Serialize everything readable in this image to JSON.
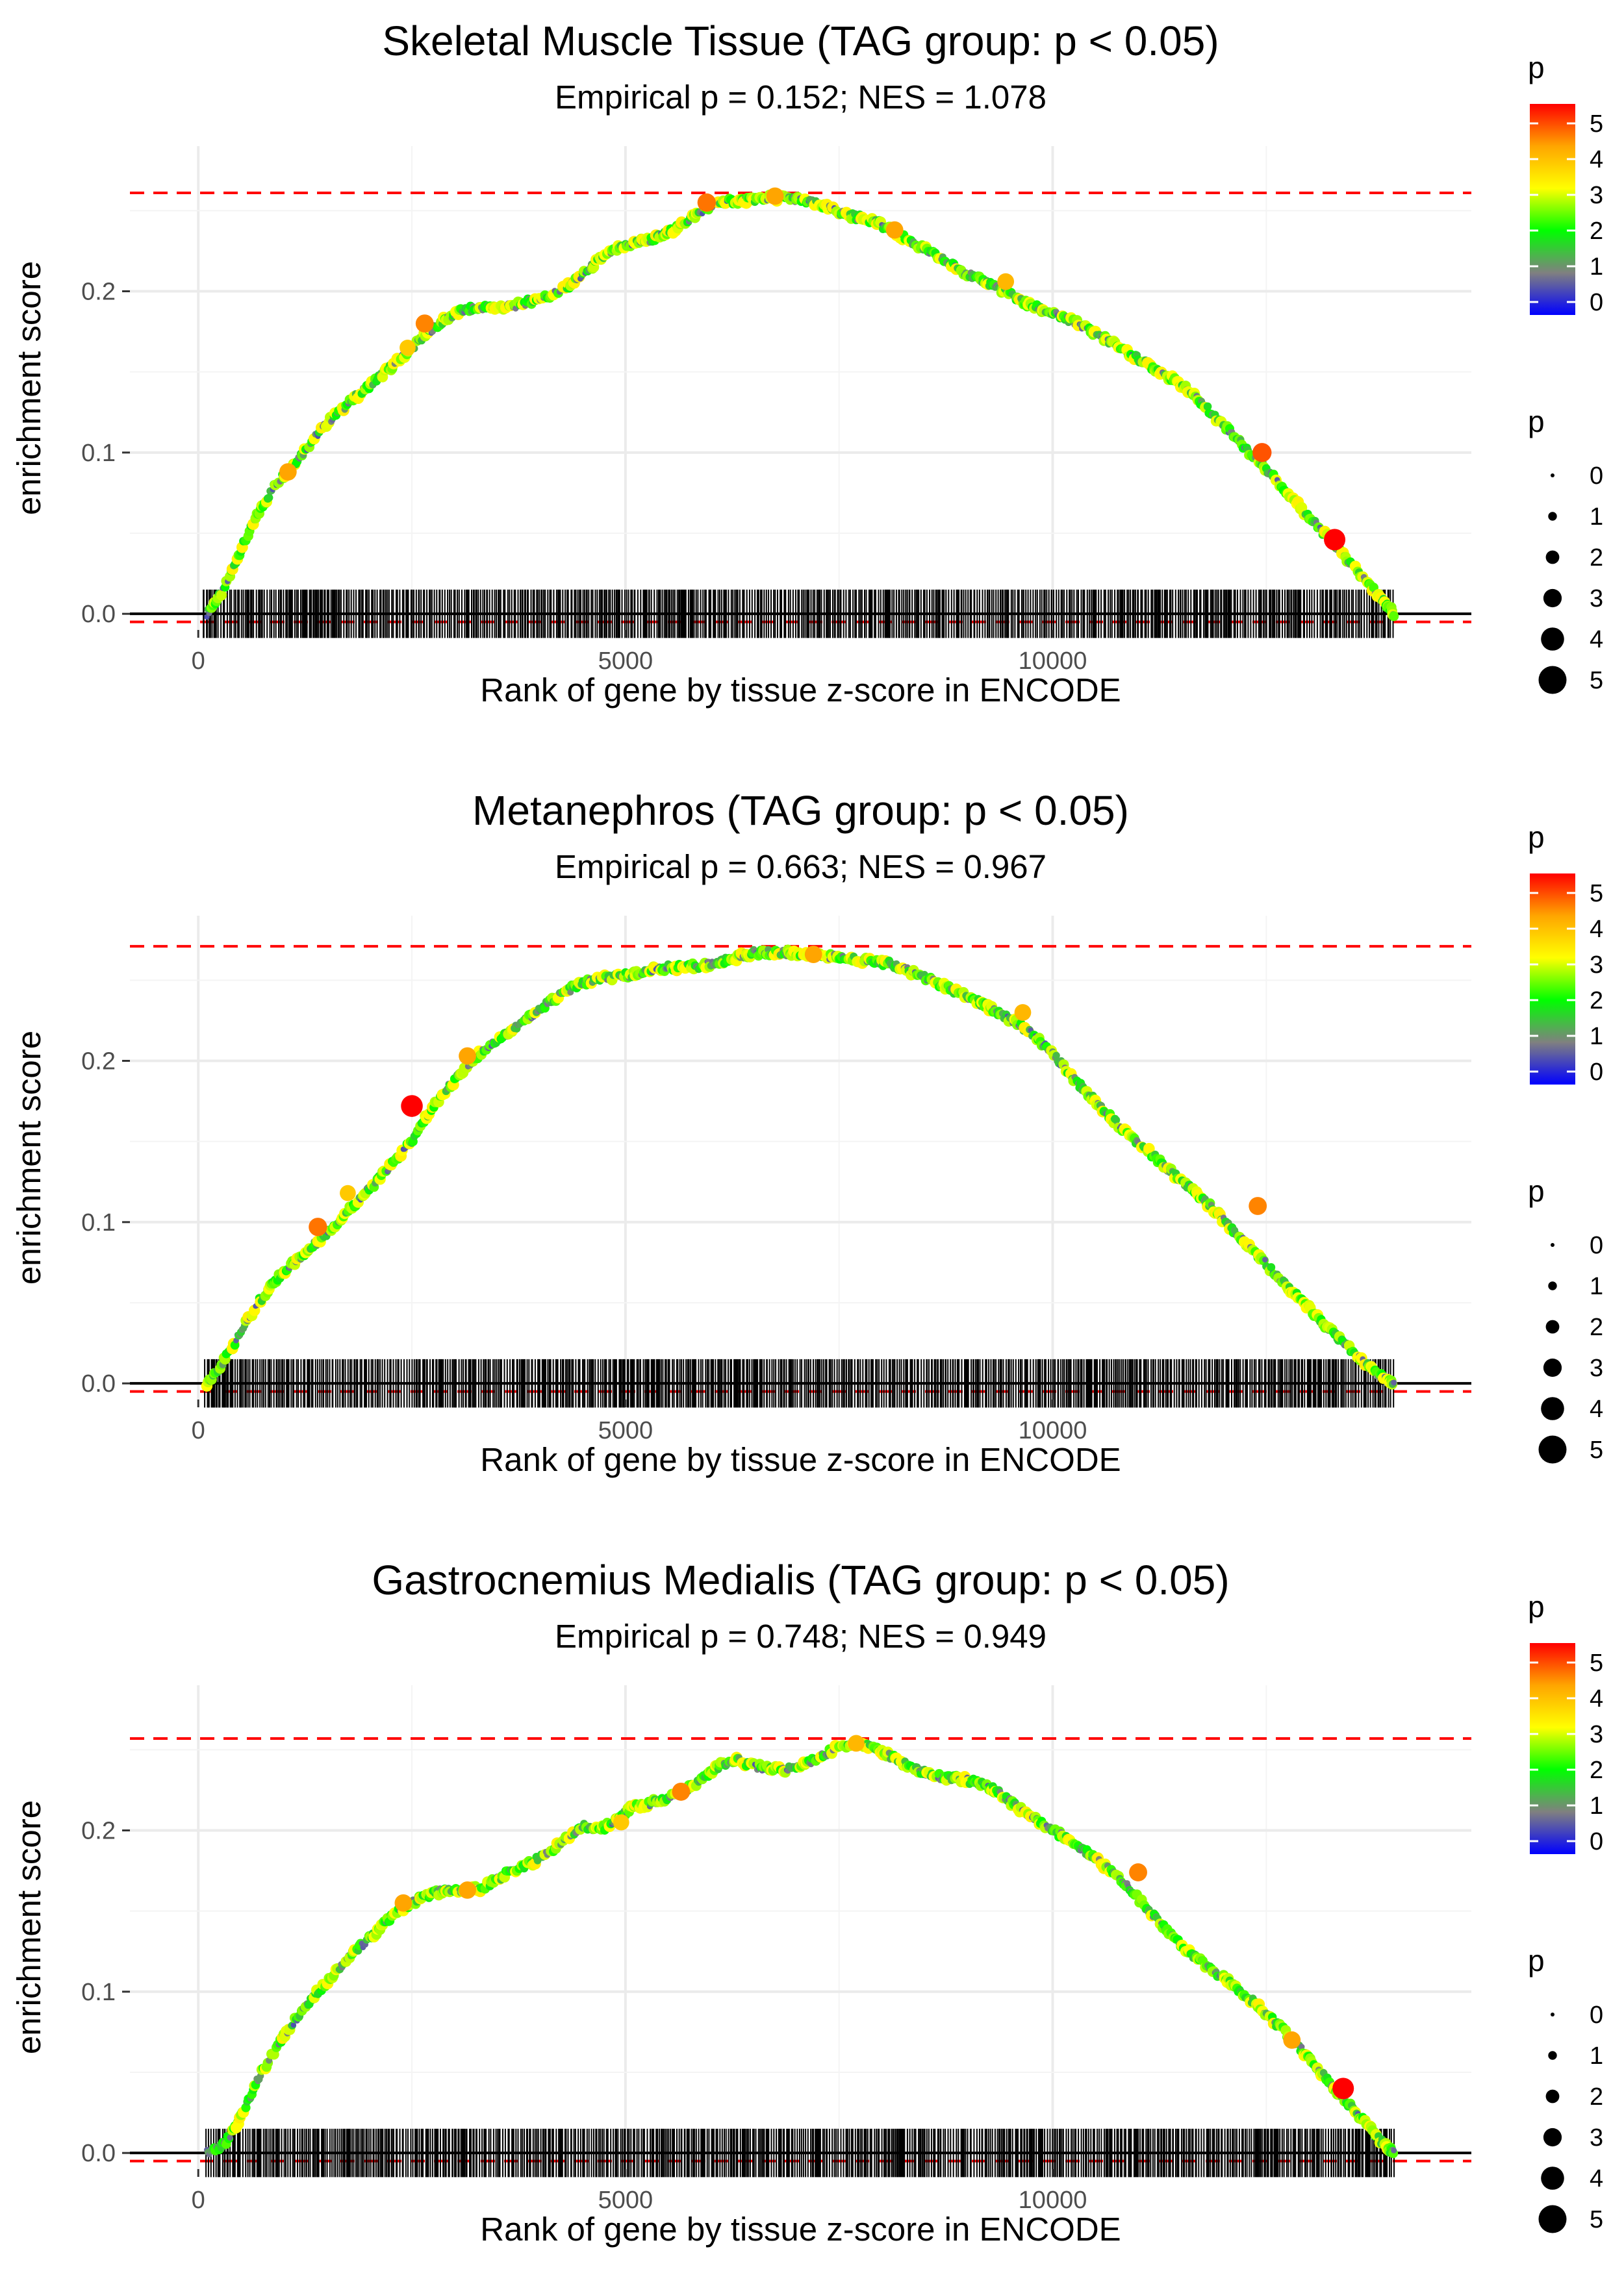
{
  "chart_data": [
    {
      "type": "line",
      "title": "Skeletal Muscle Tissue (TAG group: p < 0.05)",
      "subtitle": "Empirical p = 0.152; NES = 1.078",
      "xlabel": "Rank of gene by tissue z-score in ENCODE",
      "ylabel": "enrichment score",
      "xlim": [
        -800,
        14900
      ],
      "ylim": [
        -0.01,
        0.29
      ],
      "x_ticks": [
        0,
        5000,
        10000
      ],
      "x_tick_labels": [
        "0",
        "5000",
        "10000"
      ],
      "y_ticks": [
        0,
        0.1,
        0.2
      ],
      "y_tick_labels": [
        "0.0",
        "0.1",
        "0.2"
      ],
      "max_es": 0.261,
      "min_es": -0.005,
      "curve": {
        "x": [
          100,
          300,
          500,
          700,
          900,
          1100,
          1300,
          1500,
          1700,
          1900,
          2100,
          2300,
          2500,
          2700,
          2900,
          3100,
          3300,
          3500,
          3700,
          3900,
          4100,
          4300,
          4500,
          4700,
          4900,
          5100,
          5300,
          5500,
          5700,
          5900,
          6100,
          6300,
          6500,
          6700,
          6900,
          7100,
          7300,
          7500,
          7700,
          7900,
          8100,
          8300,
          8500,
          8700,
          8900,
          9100,
          9300,
          9500,
          9700,
          9900,
          10100,
          10300,
          10500,
          10700,
          10900,
          11100,
          11300,
          11500,
          11700,
          11900,
          12100,
          12300,
          12500,
          12700,
          12900,
          13100,
          13300,
          13500,
          13700,
          13900,
          14000
        ],
        "y": [
          0.0,
          0.015,
          0.04,
          0.062,
          0.08,
          0.092,
          0.105,
          0.118,
          0.128,
          0.137,
          0.146,
          0.155,
          0.165,
          0.175,
          0.183,
          0.188,
          0.19,
          0.19,
          0.191,
          0.194,
          0.197,
          0.202,
          0.21,
          0.22,
          0.226,
          0.23,
          0.232,
          0.236,
          0.243,
          0.25,
          0.255,
          0.256,
          0.257,
          0.258,
          0.258,
          0.256,
          0.253,
          0.249,
          0.246,
          0.244,
          0.238,
          0.232,
          0.226,
          0.22,
          0.214,
          0.208,
          0.204,
          0.198,
          0.192,
          0.188,
          0.184,
          0.18,
          0.174,
          0.168,
          0.161,
          0.155,
          0.149,
          0.142,
          0.133,
          0.122,
          0.112,
          0.1,
          0.09,
          0.078,
          0.066,
          0.054,
          0.043,
          0.03,
          0.018,
          0.006,
          0.0
        ]
      },
      "highlight_points": [
        {
          "x": 13300,
          "y": 0.046,
          "p": 5.2
        },
        {
          "x": 2650,
          "y": 0.18,
          "p": 4.2
        },
        {
          "x": 5950,
          "y": 0.255,
          "p": 4.3
        },
        {
          "x": 6750,
          "y": 0.259,
          "p": 4.0
        },
        {
          "x": 12450,
          "y": 0.1,
          "p": 4.5
        },
        {
          "x": 8150,
          "y": 0.238,
          "p": 4.0
        },
        {
          "x": 9450,
          "y": 0.206,
          "p": 3.8
        },
        {
          "x": 1050,
          "y": 0.088,
          "p": 4.0
        },
        {
          "x": 2450,
          "y": 0.165,
          "p": 3.6
        }
      ]
    },
    {
      "type": "line",
      "title": "Metanephros (TAG group: p < 0.05)",
      "subtitle": "Empirical p = 0.663; NES = 0.967",
      "xlabel": "Rank of gene by tissue z-score in ENCODE",
      "ylabel": "enrichment score",
      "xlim": [
        -800,
        14900
      ],
      "ylim": [
        -0.01,
        0.29
      ],
      "x_ticks": [
        0,
        5000,
        10000
      ],
      "x_tick_labels": [
        "0",
        "5000",
        "10000"
      ],
      "y_ticks": [
        0,
        0.1,
        0.2
      ],
      "y_tick_labels": [
        "0.0",
        "0.1",
        "0.2"
      ],
      "max_es": 0.271,
      "min_es": -0.005,
      "curve": {
        "x": [
          100,
          300,
          500,
          700,
          900,
          1100,
          1300,
          1500,
          1700,
          1900,
          2100,
          2300,
          2500,
          2700,
          2900,
          3100,
          3300,
          3500,
          3700,
          3900,
          4100,
          4300,
          4500,
          4700,
          4900,
          5100,
          5300,
          5500,
          5700,
          5900,
          6100,
          6300,
          6500,
          6700,
          6900,
          7100,
          7300,
          7500,
          7700,
          7900,
          8100,
          8300,
          8500,
          8700,
          8900,
          9100,
          9300,
          9500,
          9700,
          9900,
          10100,
          10300,
          10500,
          10700,
          10900,
          11100,
          11300,
          11500,
          11700,
          11900,
          12100,
          12300,
          12500,
          12700,
          12900,
          13100,
          13300,
          13500,
          13700,
          13900,
          14000
        ],
        "y": [
          0.0,
          0.014,
          0.032,
          0.05,
          0.064,
          0.074,
          0.083,
          0.093,
          0.104,
          0.115,
          0.126,
          0.138,
          0.15,
          0.168,
          0.182,
          0.194,
          0.205,
          0.213,
          0.22,
          0.228,
          0.236,
          0.243,
          0.248,
          0.251,
          0.252,
          0.254,
          0.256,
          0.258,
          0.258,
          0.259,
          0.261,
          0.264,
          0.267,
          0.267,
          0.267,
          0.266,
          0.265,
          0.264,
          0.263,
          0.262,
          0.26,
          0.256,
          0.252,
          0.247,
          0.242,
          0.237,
          0.232,
          0.226,
          0.219,
          0.21,
          0.198,
          0.186,
          0.175,
          0.164,
          0.154,
          0.145,
          0.135,
          0.126,
          0.117,
          0.107,
          0.095,
          0.085,
          0.074,
          0.063,
          0.052,
          0.041,
          0.03,
          0.02,
          0.01,
          0.002,
          0.0
        ]
      },
      "highlight_points": [
        {
          "x": 2500,
          "y": 0.172,
          "p": 5.3
        },
        {
          "x": 1400,
          "y": 0.097,
          "p": 4.3
        },
        {
          "x": 3150,
          "y": 0.203,
          "p": 4.0
        },
        {
          "x": 12400,
          "y": 0.11,
          "p": 4.2
        },
        {
          "x": 7200,
          "y": 0.266,
          "p": 4.0
        },
        {
          "x": 9650,
          "y": 0.23,
          "p": 3.8
        },
        {
          "x": 1750,
          "y": 0.118,
          "p": 3.6
        }
      ]
    },
    {
      "type": "line",
      "title": "Gastrocnemius Medialis (TAG group: p < 0.05)",
      "subtitle": "Empirical p = 0.748; NES = 0.949",
      "xlabel": "Rank of gene by tissue z-score in ENCODE",
      "ylabel": "enrichment score",
      "xlim": [
        -800,
        14900
      ],
      "ylim": [
        -0.01,
        0.29
      ],
      "x_ticks": [
        0,
        5000,
        10000
      ],
      "x_tick_labels": [
        "0",
        "5000",
        "10000"
      ],
      "y_ticks": [
        0,
        0.1,
        0.2
      ],
      "y_tick_labels": [
        "0.0",
        "0.1",
        "0.2"
      ],
      "max_es": 0.257,
      "min_es": -0.005,
      "curve": {
        "x": [
          100,
          300,
          500,
          700,
          900,
          1100,
          1300,
          1500,
          1700,
          1900,
          2100,
          2300,
          2500,
          2700,
          2900,
          3100,
          3300,
          3500,
          3700,
          3900,
          4100,
          4300,
          4500,
          4700,
          4900,
          5100,
          5300,
          5500,
          5700,
          5900,
          6100,
          6300,
          6500,
          6700,
          6900,
          7100,
          7300,
          7500,
          7700,
          7900,
          8100,
          8300,
          8500,
          8700,
          8900,
          9100,
          9300,
          9500,
          9700,
          9900,
          10100,
          10300,
          10500,
          10700,
          10900,
          11100,
          11300,
          11500,
          11700,
          11900,
          12100,
          12300,
          12500,
          12700,
          12900,
          13100,
          13300,
          13500,
          13700,
          13900,
          14000
        ],
        "y": [
          0.0,
          0.005,
          0.022,
          0.046,
          0.064,
          0.08,
          0.094,
          0.106,
          0.118,
          0.128,
          0.138,
          0.148,
          0.155,
          0.16,
          0.163,
          0.163,
          0.164,
          0.17,
          0.176,
          0.18,
          0.186,
          0.195,
          0.203,
          0.2,
          0.207,
          0.215,
          0.217,
          0.22,
          0.225,
          0.232,
          0.24,
          0.244,
          0.24,
          0.238,
          0.238,
          0.241,
          0.246,
          0.252,
          0.254,
          0.252,
          0.246,
          0.24,
          0.236,
          0.233,
          0.232,
          0.23,
          0.226,
          0.218,
          0.21,
          0.203,
          0.197,
          0.19,
          0.183,
          0.174,
          0.164,
          0.152,
          0.14,
          0.129,
          0.12,
          0.112,
          0.105,
          0.096,
          0.086,
          0.076,
          0.065,
          0.052,
          0.04,
          0.028,
          0.016,
          0.004,
          0.0
        ]
      },
      "highlight_points": [
        {
          "x": 13400,
          "y": 0.04,
          "p": 5.2
        },
        {
          "x": 5650,
          "y": 0.224,
          "p": 4.2
        },
        {
          "x": 2400,
          "y": 0.155,
          "p": 4.0
        },
        {
          "x": 7700,
          "y": 0.254,
          "p": 3.8
        },
        {
          "x": 11000,
          "y": 0.174,
          "p": 4.2
        },
        {
          "x": 12800,
          "y": 0.07,
          "p": 4.0
        },
        {
          "x": 3150,
          "y": 0.163,
          "p": 4.0
        },
        {
          "x": 4950,
          "y": 0.205,
          "p": 3.6
        }
      ]
    }
  ],
  "legend": {
    "color_title": "p",
    "color_labels": [
      "5",
      "4",
      "3",
      "2",
      "1",
      "0"
    ],
    "color_stops": [
      "#ff0000",
      "#ffa500",
      "#ffff00",
      "#00ff00",
      "#808080",
      "#0000ff"
    ],
    "size_title": "p",
    "size_labels": [
      "0",
      "1",
      "2",
      "3",
      "4",
      "5"
    ]
  },
  "colors": {
    "threshold_line": "#ff0000",
    "rug": "#000000",
    "zero_line": "#000000",
    "grid": "#ebebeb"
  }
}
